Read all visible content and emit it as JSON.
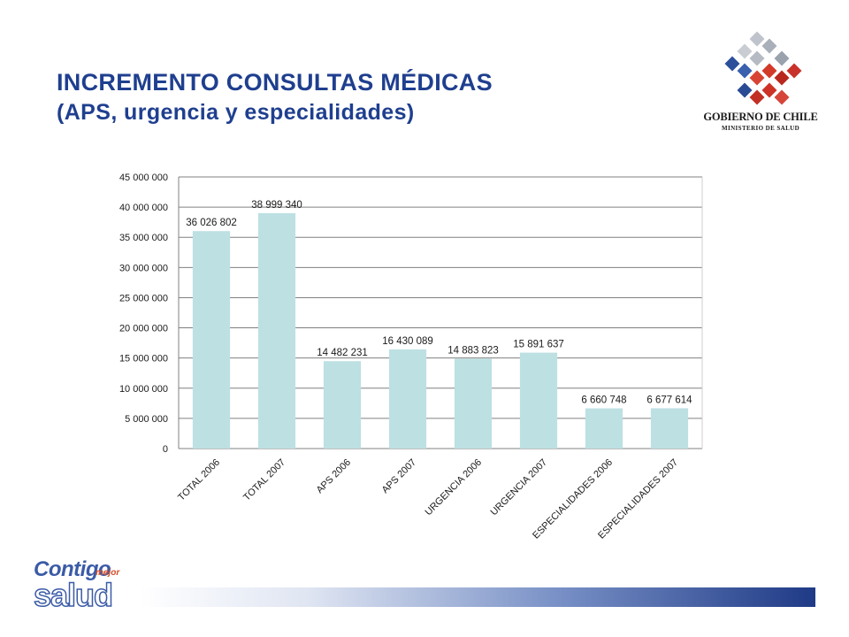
{
  "slide": {
    "title_line1": "INCREMENTO  CONSULTAS MÉDICAS",
    "title_line2": "(APS, urgencia y especialidades)"
  },
  "logo": {
    "name": "GOBIERNO DE CHILE",
    "subname": "MINISTERIO DE SALUD"
  },
  "footer_logo": {
    "word1": "Contigo",
    "word2": "mejor",
    "word3": "salud"
  },
  "colors": {
    "title": "#1f3f8f",
    "bar_fill": "#bde0e3",
    "grid": "#808080"
  },
  "chart_data": {
    "type": "bar",
    "categories": [
      "TOTAL 2006",
      "TOTAL 2007",
      "APS 2006",
      "APS 2007",
      "URGENCIA 2006",
      "URGENCIA 2007",
      "ESPECIALIDADES 2006",
      "ESPECIALIDADES 2007"
    ],
    "values": [
      36026802,
      38999340,
      14482231,
      16430089,
      14883823,
      15891637,
      6660748,
      6677614
    ],
    "data_labels": [
      "36 026 802",
      "38 999 340",
      "14 482 231",
      "16 430 089",
      "14 883 823",
      "15 891 637",
      "6 660 748",
      "6 677 614"
    ],
    "ylim": [
      0,
      45000000
    ],
    "yticks": [
      0,
      5000000,
      10000000,
      15000000,
      20000000,
      25000000,
      30000000,
      35000000,
      40000000,
      45000000
    ],
    "ytick_labels": [
      "0",
      "5 000 000",
      "10 000 000",
      "15 000 000",
      "20 000 000",
      "25 000 000",
      "30 000 000",
      "35 000 000",
      "40 000 000",
      "45 000 000"
    ],
    "grid": true,
    "xlabel": "",
    "ylabel": "",
    "legend": "none"
  }
}
